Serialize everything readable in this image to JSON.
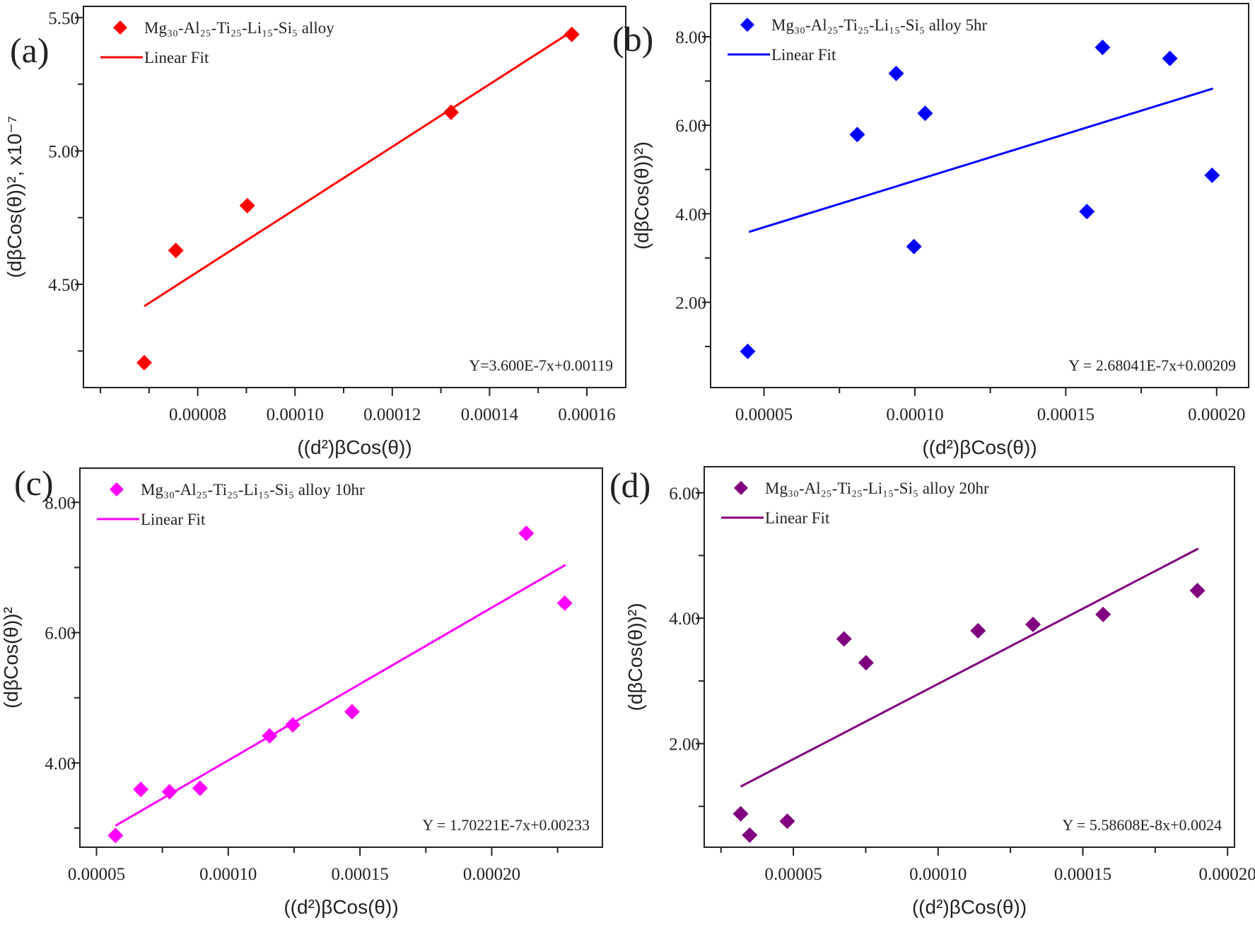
{
  "chart_data": [
    {
      "type": "scatter",
      "panel_label": "(a)",
      "xlabel": "((d²)βCos(θ))",
      "ylabel": "(dβCos(θ))², x10⁻⁷",
      "xlim": [
        5.65e-05,
        0.000168
      ],
      "ylim": [
        4.113,
        5.542
      ],
      "xticks": [
        "0.00008",
        "0.00010",
        "0.00012",
        "0.00014",
        "0.00016"
      ],
      "yticks": [
        "4.50",
        "5.00",
        "5.50"
      ],
      "grid": false,
      "legend_position": "top-left",
      "color": "#ff0000",
      "series": [
        {
          "name": "Mg₃₀-Al₂₅-Ti₂₅-Li₁₅-Si₅ alloy",
          "kind": "scatter",
          "x": [
            6.9e-05,
            7.55e-05,
            9.02e-05,
            0.0001321,
            0.0001569
          ],
          "y": [
            4.206,
            4.627,
            4.795,
            5.145,
            5.437
          ]
        },
        {
          "name": "Linear Fit",
          "kind": "line",
          "x": [
            6.9e-05,
            0.0001569
          ],
          "y": [
            4.418,
            5.448
          ]
        }
      ],
      "annotation": "Y=3.600E-7x+0.00119"
    },
    {
      "type": "scatter",
      "panel_label": "(b)",
      "xlabel": "((d²)βCos(θ))",
      "ylabel": "(dβCos(θ))²)",
      "xlim": [
        3.23e-05,
        0.0002106
      ],
      "ylim": [
        0.074,
        8.75
      ],
      "xticks": [
        "0.00005",
        "0.00010",
        "0.00015",
        "0.00020"
      ],
      "yticks": [
        "2.00",
        "4.00",
        "6.00",
        "8.00"
      ],
      "grid": false,
      "legend_position": "top-left",
      "color": "#0000ff",
      "series": [
        {
          "name": "Mg₃₀-Al₂₅-Ti₂₅-Li₁₅-Si₅ alloy 5hr",
          "kind": "scatter",
          "x": [
            4.46e-05,
            8.09e-05,
            9.38e-05,
            0.0001034,
            9.97e-05,
            0.000157,
            0.0001622,
            0.0001845,
            0.0001985
          ],
          "y": [
            0.89,
            5.79,
            7.17,
            6.27,
            3.26,
            4.05,
            7.76,
            7.51,
            4.87
          ]
        },
        {
          "name": "Linear Fit",
          "kind": "line",
          "x": [
            4.5e-05,
            0.0001988
          ],
          "y": [
            3.59,
            6.83
          ]
        }
      ],
      "annotation": "Y = 2.68041E-7x+0.00209"
    },
    {
      "type": "scatter",
      "panel_label": "(c)",
      "xlabel": "((d²)βCos(θ))",
      "ylabel": "(dβCos(θ))²",
      "xlim": [
        4.37e-05,
        0.000242
      ],
      "ylim": [
        2.706,
        8.525
      ],
      "xticks": [
        "0.00005",
        "0.00010",
        "0.00015",
        "0.00020"
      ],
      "yticks": [
        "4.00",
        "6.00",
        "8.00"
      ],
      "grid": false,
      "legend_position": "top-left",
      "color": "#ff00ff",
      "series": [
        {
          "name": "Mg₃₀-Al₂₅-Ti₂₅-Li₁₅-Si₅ alloy 10hr",
          "kind": "scatter",
          "x": [
            5.72e-05,
            6.68e-05,
            7.77e-05,
            8.93e-05,
            0.0001157,
            0.0001245,
            0.000147,
            0.0002131,
            0.0002277
          ],
          "y": [
            2.887,
            3.593,
            3.557,
            3.611,
            4.416,
            4.584,
            4.787,
            7.525,
            6.453
          ]
        },
        {
          "name": "Linear Fit",
          "kind": "line",
          "x": [
            5.72e-05,
            0.000228
          ],
          "y": [
            3.036,
            7.04
          ]
        }
      ],
      "annotation": "Y = 1.70221E-7x+0.00233"
    },
    {
      "type": "scatter",
      "panel_label": "(d)",
      "xlabel": "((d²)βCos(θ))",
      "ylabel": "(dβCos(θ))²)",
      "xlim": [
        1.92e-05,
        0.0002024
      ],
      "ylim": [
        0.349,
        6.415
      ],
      "xticks": [
        "0.00005",
        "0.00010",
        "0.00015",
        "0.00020"
      ],
      "yticks": [
        "2.00",
        "4.00",
        "6.00"
      ],
      "grid": false,
      "legend_position": "top-left",
      "color": "#800080",
      "series": [
        {
          "name": "Mg₃₀-Al₂₅-Ti₂₅-Li₁₅-Si₅ alloy 20hr",
          "kind": "scatter",
          "x": [
            3.18e-05,
            3.49e-05,
            4.79e-05,
            6.75e-05,
            7.51e-05,
            0.0001138,
            0.0001328,
            0.000157,
            0.0001896
          ],
          "y": [
            0.882,
            0.542,
            0.764,
            3.67,
            3.29,
            3.8,
            3.9,
            4.06,
            4.44
          ]
        },
        {
          "name": "Linear Fit",
          "kind": "line",
          "x": [
            3.18e-05,
            0.0001899
          ],
          "y": [
            1.316,
            5.11
          ]
        }
      ],
      "annotation": "Y = 5.58608E-8x+0.0024"
    }
  ]
}
